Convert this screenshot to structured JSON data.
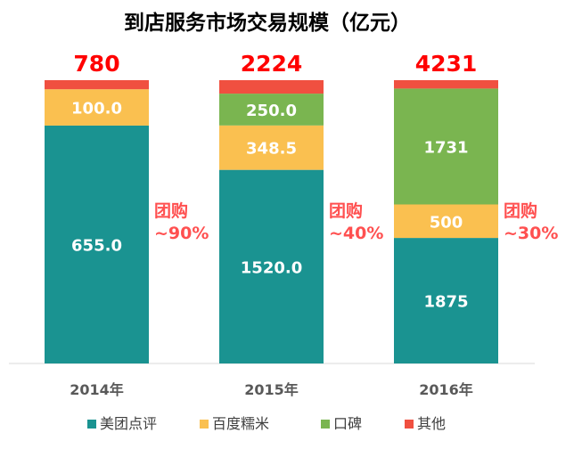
{
  "chart_data": {
    "type": "bar",
    "stacked": true,
    "title": "到店服务市场交易规模（亿元）",
    "categories": [
      "2014年",
      "2015年",
      "2016年"
    ],
    "totals": [
      "780",
      "2224",
      "4231"
    ],
    "series": [
      {
        "name": "美团点评",
        "color": "#1a9391",
        "values": [
          655.0,
          1520.0,
          1875
        ],
        "labels": [
          "655.0",
          "1520.0",
          "1875"
        ]
      },
      {
        "name": "百度糯米",
        "color": "#fac050",
        "values": [
          100.0,
          348.5,
          500
        ],
        "labels": [
          "100.0",
          "348.5",
          "500"
        ]
      },
      {
        "name": "口碑",
        "color": "#7ab550",
        "values": [
          0,
          250.0,
          1731
        ],
        "labels": [
          "",
          "250.0",
          "1731"
        ]
      },
      {
        "name": "其他",
        "color": "#f05040",
        "values": [
          25,
          105.5,
          125
        ],
        "labels": [
          "",
          "",
          ""
        ]
      }
    ],
    "annotations": [
      {
        "line1": "团购",
        "line2": "~90%"
      },
      {
        "line1": "团购",
        "line2": "~40%"
      },
      {
        "line1": "团购",
        "line2": "~30%"
      }
    ],
    "legend_position": "bottom"
  }
}
